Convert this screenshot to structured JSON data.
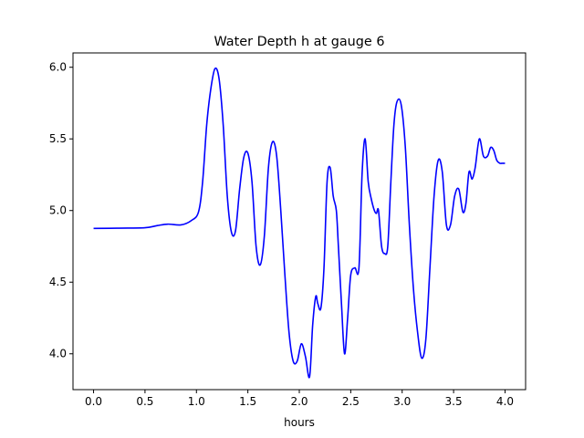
{
  "chart_data": {
    "type": "line",
    "title": "Water Depth h at gauge 6",
    "xlabel": "hours",
    "ylabel": "",
    "xlim": [
      -0.2,
      4.2
    ],
    "ylim": [
      3.75,
      6.1
    ],
    "xticks": [
      0.0,
      0.5,
      1.0,
      1.5,
      2.0,
      2.5,
      3.0,
      3.5,
      4.0
    ],
    "xtick_labels": [
      "0.0",
      "0.5",
      "1.0",
      "1.5",
      "2.0",
      "2.5",
      "3.0",
      "3.5",
      "4.0"
    ],
    "yticks": [
      4.0,
      4.5,
      5.0,
      5.5,
      6.0
    ],
    "ytick_labels": [
      "4.0",
      "4.5",
      "5.0",
      "5.5",
      "6.0"
    ],
    "grid": false,
    "line_color": "#0000ff",
    "series": [
      {
        "x": [
          0.0,
          0.25,
          0.5,
          0.62,
          0.72,
          0.85,
          0.95,
          1.02,
          1.06,
          1.1,
          1.14,
          1.18,
          1.22,
          1.26,
          1.3,
          1.34,
          1.38,
          1.42,
          1.46,
          1.5,
          1.54,
          1.58,
          1.62,
          1.66,
          1.7,
          1.74,
          1.78,
          1.82,
          1.86,
          1.9,
          1.94,
          1.98,
          2.02,
          2.06,
          2.1,
          2.13,
          2.16,
          2.18,
          2.21,
          2.24,
          2.27,
          2.3,
          2.33,
          2.36,
          2.38,
          2.41,
          2.44,
          2.47,
          2.5,
          2.54,
          2.58,
          2.61,
          2.64,
          2.67,
          2.7,
          2.73,
          2.75,
          2.77,
          2.8,
          2.83,
          2.86,
          2.89,
          2.92,
          2.95,
          2.99,
          3.03,
          3.07,
          3.11,
          3.15,
          3.19,
          3.23,
          3.27,
          3.31,
          3.35,
          3.39,
          3.43,
          3.47,
          3.51,
          3.55,
          3.59,
          3.62,
          3.65,
          3.68,
          3.71,
          3.75,
          3.79,
          3.83,
          3.86,
          3.89,
          3.92,
          3.95,
          3.97,
          4.0
        ],
        "values": [
          4.875,
          4.877,
          4.88,
          4.895,
          4.905,
          4.9,
          4.93,
          4.99,
          5.2,
          5.6,
          5.85,
          5.99,
          5.92,
          5.6,
          5.1,
          4.85,
          4.86,
          5.15,
          5.37,
          5.4,
          5.2,
          4.75,
          4.62,
          4.82,
          5.3,
          5.48,
          5.38,
          5.0,
          4.55,
          4.15,
          3.95,
          3.95,
          4.07,
          3.98,
          3.84,
          4.2,
          4.4,
          4.35,
          4.32,
          4.6,
          5.2,
          5.3,
          5.1,
          5.0,
          4.75,
          4.35,
          4.0,
          4.25,
          4.55,
          4.6,
          4.6,
          5.25,
          5.5,
          5.2,
          5.08,
          5.0,
          4.98,
          5.0,
          4.75,
          4.7,
          4.75,
          5.2,
          5.6,
          5.76,
          5.74,
          5.45,
          4.9,
          4.45,
          4.15,
          3.97,
          4.1,
          4.6,
          5.1,
          5.35,
          5.27,
          4.9,
          4.9,
          5.1,
          5.15,
          4.99,
          5.05,
          5.27,
          5.22,
          5.3,
          5.5,
          5.38,
          5.38,
          5.44,
          5.42,
          5.35,
          5.33,
          5.33,
          5.33
        ]
      }
    ]
  }
}
